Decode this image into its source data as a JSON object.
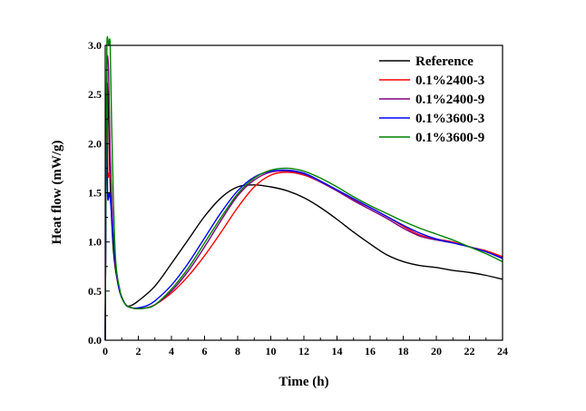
{
  "chart_data": {
    "type": "line",
    "xlabel": "Time (h)",
    "ylabel": "Heat flow (mW/g)",
    "xlim": [
      0,
      24
    ],
    "ylim": [
      0,
      3
    ],
    "xticks": [
      0,
      2,
      4,
      6,
      8,
      10,
      12,
      14,
      16,
      18,
      20,
      22,
      24
    ],
    "xtick_labels": [
      "0",
      "2",
      "4",
      "6",
      "8",
      "10",
      "12",
      "14",
      "16",
      "18",
      "20",
      "22",
      "24"
    ],
    "yticks": [
      0,
      0.5,
      1,
      1.5,
      2,
      2.5,
      3
    ],
    "ytick_labels": [
      "0.0",
      "0.5",
      "1.0",
      "1.5",
      "2.0",
      "2.5",
      "3.0"
    ],
    "grid": false,
    "legend_position": "top-right",
    "series": [
      {
        "name": "Reference",
        "color": "#000000",
        "points": [
          [
            0,
            0
          ],
          [
            0.05,
            1.8
          ],
          [
            0.1,
            2.6
          ],
          [
            0.2,
            2.3
          ],
          [
            0.3,
            1.6
          ],
          [
            0.5,
            0.9
          ],
          [
            0.8,
            0.55
          ],
          [
            1.2,
            0.37
          ],
          [
            1.5,
            0.35
          ],
          [
            2,
            0.4
          ],
          [
            3,
            0.55
          ],
          [
            4,
            0.78
          ],
          [
            5,
            1.02
          ],
          [
            6,
            1.26
          ],
          [
            7,
            1.45
          ],
          [
            8,
            1.56
          ],
          [
            9,
            1.58
          ],
          [
            10,
            1.56
          ],
          [
            11,
            1.52
          ],
          [
            12,
            1.45
          ],
          [
            13,
            1.35
          ],
          [
            14,
            1.23
          ],
          [
            15,
            1.1
          ],
          [
            16,
            0.98
          ],
          [
            17,
            0.87
          ],
          [
            18,
            0.8
          ],
          [
            19,
            0.76
          ],
          [
            20,
            0.74
          ],
          [
            21,
            0.71
          ],
          [
            22,
            0.69
          ],
          [
            23,
            0.66
          ],
          [
            24,
            0.62
          ]
        ]
      },
      {
        "name": "0.1%2400-3",
        "color": "#ff0000",
        "points": [
          [
            0,
            0
          ],
          [
            0.05,
            1.8
          ],
          [
            0.1,
            2.85
          ],
          [
            0.15,
            1.75
          ],
          [
            0.25,
            1.7
          ],
          [
            0.35,
            1.6
          ],
          [
            0.5,
            1.0
          ],
          [
            0.8,
            0.55
          ],
          [
            1.2,
            0.37
          ],
          [
            1.6,
            0.33
          ],
          [
            2,
            0.32
          ],
          [
            2.5,
            0.33
          ],
          [
            3,
            0.36
          ],
          [
            4,
            0.48
          ],
          [
            5,
            0.65
          ],
          [
            6,
            0.86
          ],
          [
            7,
            1.1
          ],
          [
            8,
            1.35
          ],
          [
            9,
            1.56
          ],
          [
            10,
            1.68
          ],
          [
            11,
            1.71
          ],
          [
            12,
            1.68
          ],
          [
            13,
            1.61
          ],
          [
            14,
            1.52
          ],
          [
            15,
            1.43
          ],
          [
            16,
            1.35
          ],
          [
            17,
            1.26
          ],
          [
            18,
            1.16
          ],
          [
            19,
            1.07
          ],
          [
            20,
            1.03
          ],
          [
            21,
            1.0
          ],
          [
            22,
            0.95
          ],
          [
            23,
            0.91
          ],
          [
            24,
            0.85
          ]
        ]
      },
      {
        "name": "0.1%2400-9",
        "color": "#800080",
        "points": [
          [
            0,
            0
          ],
          [
            0.05,
            1.8
          ],
          [
            0.1,
            2.8
          ],
          [
            0.2,
            2.75
          ],
          [
            0.3,
            1.9
          ],
          [
            0.5,
            1.0
          ],
          [
            0.8,
            0.55
          ],
          [
            1.2,
            0.37
          ],
          [
            1.6,
            0.33
          ],
          [
            2,
            0.32
          ],
          [
            2.5,
            0.33
          ],
          [
            3,
            0.36
          ],
          [
            4,
            0.5
          ],
          [
            5,
            0.7
          ],
          [
            6,
            0.95
          ],
          [
            7,
            1.22
          ],
          [
            8,
            1.47
          ],
          [
            9,
            1.63
          ],
          [
            10,
            1.71
          ],
          [
            11,
            1.72
          ],
          [
            12,
            1.69
          ],
          [
            13,
            1.61
          ],
          [
            14,
            1.52
          ],
          [
            15,
            1.42
          ],
          [
            16,
            1.33
          ],
          [
            17,
            1.24
          ],
          [
            18,
            1.14
          ],
          [
            19,
            1.06
          ],
          [
            20,
            1.02
          ],
          [
            21,
            0.99
          ],
          [
            22,
            0.95
          ],
          [
            23,
            0.9
          ],
          [
            24,
            0.84
          ]
        ]
      },
      {
        "name": "0.1%3600-3",
        "color": "#0000ff",
        "points": [
          [
            0,
            0
          ],
          [
            0.05,
            1.6
          ],
          [
            0.1,
            2.0
          ],
          [
            0.15,
            1.45
          ],
          [
            0.25,
            1.5
          ],
          [
            0.35,
            1.35
          ],
          [
            0.5,
            1.0
          ],
          [
            0.8,
            0.55
          ],
          [
            1.2,
            0.37
          ],
          [
            1.6,
            0.33
          ],
          [
            2,
            0.33
          ],
          [
            2.5,
            0.35
          ],
          [
            3,
            0.4
          ],
          [
            4,
            0.56
          ],
          [
            5,
            0.78
          ],
          [
            6,
            1.04
          ],
          [
            7,
            1.3
          ],
          [
            8,
            1.52
          ],
          [
            9,
            1.66
          ],
          [
            10,
            1.72
          ],
          [
            11,
            1.73
          ],
          [
            12,
            1.7
          ],
          [
            13,
            1.62
          ],
          [
            14,
            1.53
          ],
          [
            15,
            1.44
          ],
          [
            16,
            1.35
          ],
          [
            17,
            1.26
          ],
          [
            18,
            1.17
          ],
          [
            19,
            1.09
          ],
          [
            20,
            1.03
          ],
          [
            21,
            0.99
          ],
          [
            22,
            0.95
          ],
          [
            23,
            0.9
          ],
          [
            24,
            0.83
          ]
        ]
      },
      {
        "name": "0.1%3600-9",
        "color": "#008000",
        "points": [
          [
            0,
            0
          ],
          [
            0.05,
            1.8
          ],
          [
            0.1,
            3.0
          ],
          [
            0.2,
            3.0
          ],
          [
            0.3,
            3.0
          ],
          [
            0.4,
            2.1
          ],
          [
            0.6,
            0.9
          ],
          [
            0.9,
            0.5
          ],
          [
            1.2,
            0.37
          ],
          [
            1.6,
            0.33
          ],
          [
            2,
            0.32
          ],
          [
            2.5,
            0.33
          ],
          [
            3,
            0.36
          ],
          [
            4,
            0.52
          ],
          [
            5,
            0.73
          ],
          [
            6,
            0.99
          ],
          [
            7,
            1.25
          ],
          [
            8,
            1.49
          ],
          [
            9,
            1.65
          ],
          [
            10,
            1.73
          ],
          [
            11,
            1.75
          ],
          [
            12,
            1.72
          ],
          [
            13,
            1.65
          ],
          [
            14,
            1.56
          ],
          [
            15,
            1.46
          ],
          [
            16,
            1.37
          ],
          [
            17,
            1.29
          ],
          [
            18,
            1.21
          ],
          [
            19,
            1.14
          ],
          [
            20,
            1.08
          ],
          [
            21,
            1.02
          ],
          [
            22,
            0.95
          ],
          [
            23,
            0.88
          ],
          [
            24,
            0.8
          ]
        ]
      }
    ]
  }
}
